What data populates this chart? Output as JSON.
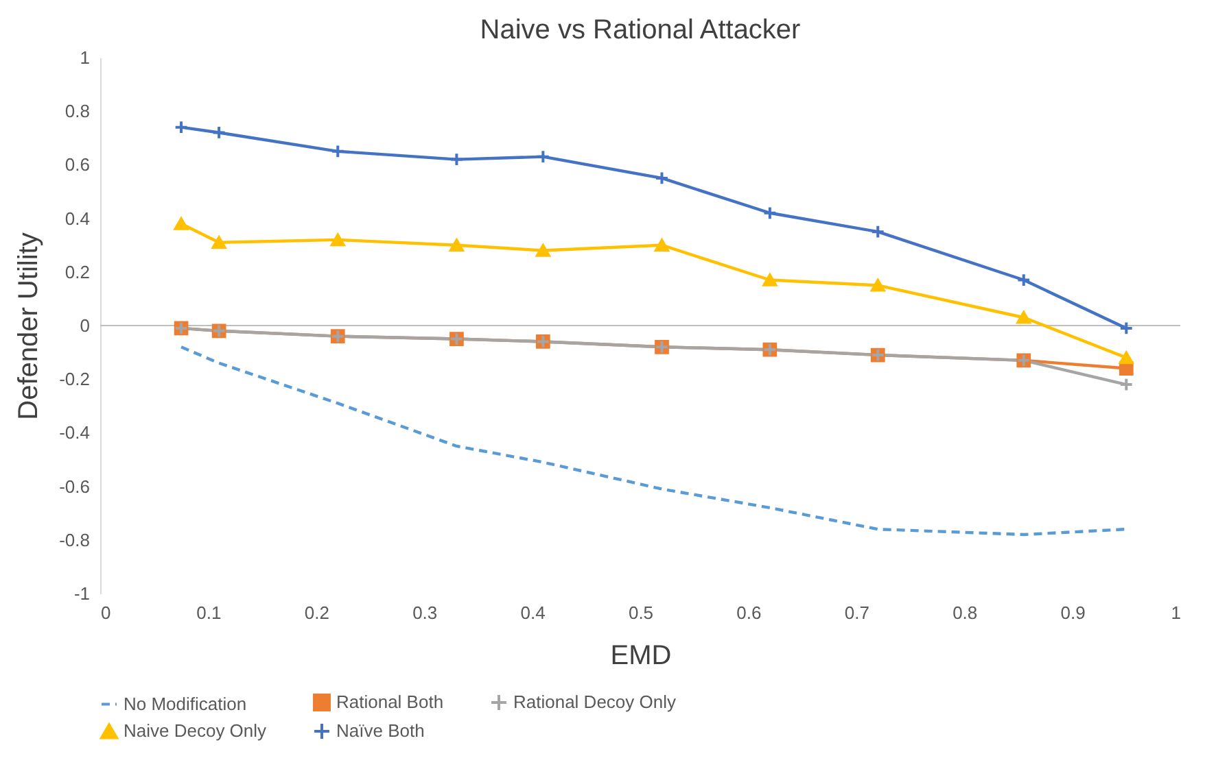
{
  "chart_data": {
    "type": "line",
    "title": "Naive vs Rational Attacker",
    "xlabel": "EMD",
    "ylabel": "Defender Utility",
    "x": [
      0.075,
      0.11,
      0.22,
      0.33,
      0.41,
      0.52,
      0.62,
      0.72,
      0.855,
      0.95
    ],
    "series": [
      {
        "name": "No Modification",
        "color": "#5b9bd5",
        "marker": "none",
        "line_style": "dashed",
        "values": [
          -0.08,
          -0.14,
          -0.29,
          -0.45,
          -0.51,
          -0.61,
          -0.68,
          -0.76,
          -0.78,
          -0.76
        ]
      },
      {
        "name": "Rational Both",
        "color": "#ed7d31",
        "marker": "square",
        "line_style": "solid",
        "values": [
          -0.01,
          -0.02,
          -0.04,
          -0.05,
          -0.06,
          -0.08,
          -0.09,
          -0.11,
          -0.13,
          -0.16
        ]
      },
      {
        "name": "Rational Decoy Only",
        "color": "#a5a5a5",
        "marker": "cross",
        "line_style": "solid",
        "values": [
          -0.01,
          -0.02,
          -0.04,
          -0.05,
          -0.06,
          -0.08,
          -0.09,
          -0.11,
          -0.13,
          -0.22
        ]
      },
      {
        "name": "Naive Decoy Only",
        "color": "#ffc000",
        "marker": "triangle",
        "line_style": "solid",
        "values": [
          0.38,
          0.31,
          0.32,
          0.3,
          0.28,
          0.3,
          0.17,
          0.15,
          0.03,
          -0.12
        ]
      },
      {
        "name": "Naïve Both",
        "color": "#4472c4",
        "marker": "cross",
        "line_style": "solid",
        "values": [
          0.74,
          0.72,
          0.65,
          0.62,
          0.63,
          0.55,
          0.42,
          0.35,
          0.17,
          -0.01
        ]
      }
    ],
    "xlim": [
      0,
      1
    ],
    "xticks": [
      0,
      0.1,
      0.2,
      0.3,
      0.4,
      0.5,
      0.6,
      0.7,
      0.8,
      0.9,
      1
    ],
    "ylim": [
      -1,
      1
    ],
    "yticks": [
      -1,
      -0.8,
      -0.6,
      -0.4,
      -0.2,
      0,
      0.2,
      0.4,
      0.6,
      0.8,
      1
    ],
    "ref_lines": [
      {
        "axis": "y",
        "value": 0,
        "label": null,
        "color": "#bfbfbf"
      }
    ],
    "grid": false,
    "legend": "bottom"
  }
}
